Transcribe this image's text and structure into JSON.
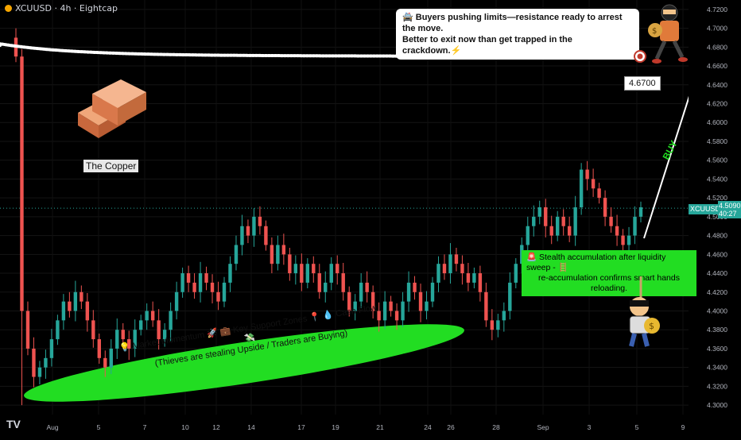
{
  "header": {
    "title": "XCUUSD · 4h · Eightcap"
  },
  "annotations": {
    "copper_label": "The Copper",
    "resistance_note_line1": "🚔 Buyers pushing limits—resistance ready to arrest the move.",
    "resistance_note_line2": "Better to exit now than get trapped in the crackdown.⚡",
    "target_price": "4.6700",
    "accumulation_line1": "🚨 Stealth accumulation after liquidity sweep - 🪜",
    "accumulation_line2": "re-accumulation confirms smart hands reloading.",
    "support_line1": "💡 Market Momentum 🚀 💼 Key Support Zones 📍 💧 Cash Flow 💸",
    "support_line2": "(Thieves are stealing Upside / Traders are Buying)",
    "buy_label": "BUY"
  },
  "price_tag": {
    "symbol": "XCUUSD",
    "price": "4.5090",
    "countdown": "40:27"
  },
  "colors": {
    "up": "#26a69a",
    "down": "#ef5350",
    "support_ellipse": "#22dd22",
    "resistance_line": "#ffffff"
  },
  "chart_data": {
    "type": "candlestick",
    "symbol": "XCUUSD",
    "timeframe": "4h",
    "broker": "Eightcap",
    "ylim": [
      4.29,
      4.73
    ],
    "y_ticks": [
      "4.7200",
      "4.7000",
      "4.6800",
      "4.6600",
      "4.6400",
      "4.6200",
      "4.6000",
      "4.5800",
      "4.5600",
      "4.5400",
      "4.5200",
      "4.5000",
      "4.4800",
      "4.4600",
      "4.4400",
      "4.4200",
      "4.4000",
      "4.3800",
      "4.3600",
      "4.3400",
      "4.3200",
      "4.3000"
    ],
    "x_ticks": [
      "Aug",
      "5",
      "7",
      "10",
      "12",
      "14",
      "17",
      "19",
      "21",
      "24",
      "26",
      "28",
      "Sep",
      "3",
      "5",
      "9"
    ],
    "resistance_level": 4.67,
    "close_series": [
      4.67,
      4.4,
      4.36,
      4.33,
      4.34,
      4.35,
      4.37,
      4.39,
      4.41,
      4.4,
      4.42,
      4.41,
      4.39,
      4.37,
      4.35,
      4.34,
      4.36,
      4.38,
      4.37,
      4.36,
      4.38,
      4.39,
      4.4,
      4.39,
      4.37,
      4.38,
      4.4,
      4.42,
      4.44,
      4.43,
      4.42,
      4.44,
      4.43,
      4.42,
      4.41,
      4.43,
      4.45,
      4.47,
      4.49,
      4.48,
      4.5,
      4.49,
      4.47,
      4.45,
      4.47,
      4.46,
      4.44,
      4.45,
      4.43,
      4.45,
      4.44,
      4.42,
      4.43,
      4.45,
      4.44,
      4.42,
      4.4,
      4.41,
      4.43,
      4.42,
      4.4,
      4.39,
      4.41,
      4.4,
      4.39,
      4.41,
      4.43,
      4.42,
      4.4,
      4.41,
      4.43,
      4.45,
      4.44,
      4.46,
      4.45,
      4.44,
      4.43,
      4.44,
      4.42,
      4.39,
      4.38,
      4.39,
      4.4,
      4.43,
      4.45,
      4.47,
      4.49,
      4.5,
      4.51,
      4.49,
      4.48,
      4.5,
      4.49,
      4.48,
      4.51,
      4.55,
      4.54,
      4.53,
      4.52,
      4.5,
      4.49,
      4.48,
      4.47,
      4.48,
      4.5,
      4.51
    ]
  }
}
